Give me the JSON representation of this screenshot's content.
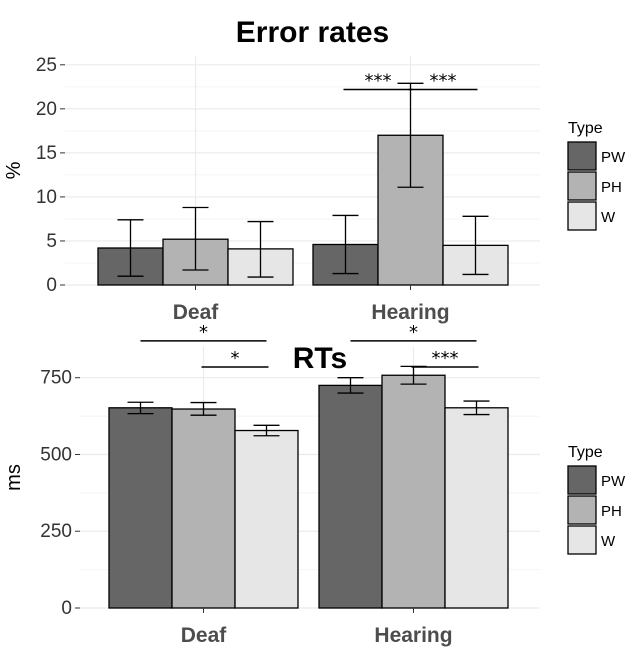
{
  "chart_data": [
    {
      "type": "bar",
      "title": "Error rates",
      "ylabel": "%",
      "xlabel": "",
      "categories": [
        "Deaf",
        "Hearing"
      ],
      "ylim": [
        0,
        26
      ],
      "yticks": [
        0,
        5,
        10,
        15,
        20,
        25
      ],
      "grid": true,
      "legend": {
        "title": "Type",
        "position": "right"
      },
      "series": [
        {
          "name": "PW",
          "color": "#666666",
          "values": [
            4.2,
            4.6
          ],
          "err_low": [
            1.0,
            1.3
          ],
          "err_high": [
            7.4,
            7.9
          ]
        },
        {
          "name": "PH",
          "color": "#b3b3b3",
          "values": [
            5.2,
            17.0
          ],
          "err_low": [
            1.7,
            11.1
          ],
          "err_high": [
            8.8,
            22.9
          ]
        },
        {
          "name": "W",
          "color": "#e6e6e6",
          "values": [
            4.1,
            4.5
          ],
          "err_low": [
            0.9,
            1.2
          ],
          "err_high": [
            7.2,
            7.8
          ]
        }
      ],
      "significance": [
        {
          "category": "Hearing",
          "from": "PW",
          "to": "PH",
          "label": "***",
          "y": 22.2
        },
        {
          "category": "Hearing",
          "from": "PH",
          "to": "W",
          "label": "***",
          "y": 22.2
        }
      ]
    },
    {
      "type": "bar",
      "title": "RTs",
      "ylabel": "ms",
      "xlabel": "",
      "categories": [
        "Deaf",
        "Hearing"
      ],
      "ylim": [
        0,
        850
      ],
      "yticks": [
        0,
        250,
        500,
        750
      ],
      "grid": true,
      "legend": {
        "title": "Type",
        "position": "right"
      },
      "series": [
        {
          "name": "PW",
          "color": "#666666",
          "values": [
            652,
            725
          ],
          "err_low": [
            633,
            700
          ],
          "err_high": [
            670,
            750
          ]
        },
        {
          "name": "PH",
          "color": "#b3b3b3",
          "values": [
            648,
            758
          ],
          "err_low": [
            628,
            729
          ],
          "err_high": [
            669,
            787
          ]
        },
        {
          "name": "W",
          "color": "#e6e6e6",
          "values": [
            578,
            652
          ],
          "err_low": [
            561,
            630
          ],
          "err_high": [
            595,
            674
          ]
        }
      ],
      "significance": [
        {
          "category": "Deaf",
          "from": "PW",
          "to": "W",
          "label": "*",
          "y": 870
        },
        {
          "category": "Deaf",
          "from": "PH",
          "to": "W",
          "label": "*",
          "y": 785
        },
        {
          "category": "Hearing",
          "from": "PW",
          "to": "W",
          "label": "*",
          "y": 870
        },
        {
          "category": "Hearing",
          "from": "PH",
          "to": "W",
          "label": "***",
          "y": 785
        }
      ]
    }
  ]
}
